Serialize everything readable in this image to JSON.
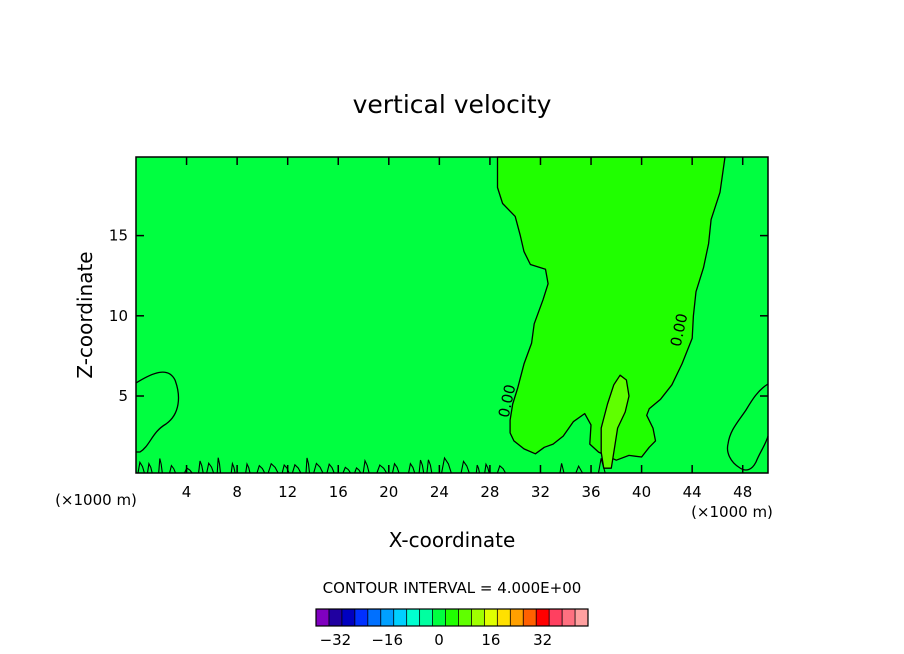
{
  "chart_data": {
    "type": "contour",
    "title": "vertical velocity",
    "xlabel": "X-coordinate",
    "ylabel": "Z-coordinate",
    "x_unit_left": "(×1000 m)",
    "x_unit_right": "(×1000 m)",
    "xlim": [
      0,
      50
    ],
    "ylim": [
      0.2,
      19.9
    ],
    "x_ticks": [
      4,
      8,
      12,
      16,
      20,
      24,
      28,
      32,
      36,
      40,
      44,
      48
    ],
    "y_ticks": [
      5,
      10,
      15
    ],
    "contour_interval_text": "CONTOUR INTERVAL = 4.000E+00",
    "contour_labels": [
      "0.00",
      "0.00"
    ],
    "background_color": "#00ff40",
    "regions": [
      {
        "name": "updraft-zone",
        "color": "#20ff00",
        "outline": [
          [
            28.6,
            19.9
          ],
          [
            28.6,
            18
          ],
          [
            29,
            17
          ],
          [
            30,
            16.2
          ],
          [
            30.4,
            15
          ],
          [
            30.7,
            14
          ],
          [
            31.2,
            13.2
          ],
          [
            32.4,
            12.9
          ],
          [
            32.6,
            12
          ],
          [
            32.2,
            11
          ],
          [
            31.5,
            9.5
          ],
          [
            31.3,
            8.3
          ],
          [
            30.7,
            7
          ],
          [
            30.2,
            5.5
          ],
          [
            29.8,
            4.5
          ],
          [
            29.6,
            3.5
          ],
          [
            29.6,
            2.7
          ],
          [
            29.9,
            2.2
          ],
          [
            30.7,
            1.7
          ],
          [
            31.6,
            1.4
          ],
          [
            32.3,
            1.8
          ],
          [
            33,
            2
          ],
          [
            33.8,
            2.5
          ],
          [
            34.6,
            3.4
          ],
          [
            35.5,
            3.9
          ],
          [
            36,
            3.2
          ],
          [
            35.9,
            2
          ],
          [
            36.6,
            1.5
          ],
          [
            38,
            1
          ],
          [
            39,
            1.3
          ],
          [
            40,
            1.2
          ],
          [
            40.6,
            1.8
          ],
          [
            41.1,
            2.2
          ],
          [
            40.9,
            3
          ],
          [
            40.4,
            3.8
          ],
          [
            40.6,
            4.2
          ],
          [
            41.5,
            4.8
          ],
          [
            42.4,
            5.7
          ],
          [
            43.2,
            7
          ],
          [
            44,
            8.6
          ],
          [
            44.1,
            10
          ],
          [
            44.3,
            11.5
          ],
          [
            44.9,
            13
          ],
          [
            45.3,
            14.5
          ],
          [
            45.5,
            16
          ],
          [
            46.2,
            17.7
          ],
          [
            46.6,
            19.9
          ]
        ]
      },
      {
        "name": "strong-updraft-cell",
        "color": "#60ff00",
        "outline": [
          [
            38.3,
            6.3
          ],
          [
            38.8,
            6
          ],
          [
            39,
            5
          ],
          [
            38.7,
            4
          ],
          [
            38.1,
            3
          ],
          [
            37.9,
            2
          ],
          [
            37.6,
            0.5
          ],
          [
            37.0,
            0.5
          ],
          [
            36.8,
            1.5
          ],
          [
            36.8,
            3
          ],
          [
            37.3,
            4.5
          ],
          [
            37.8,
            5.7
          ]
        ]
      }
    ],
    "colorbar": {
      "colors": [
        "#8000c0",
        "#2000a0",
        "#0000c0",
        "#0030ff",
        "#0070ff",
        "#00a0ff",
        "#00d0ff",
        "#00ffd0",
        "#00ffa0",
        "#00ff40",
        "#20ff00",
        "#60ff00",
        "#a0ff00",
        "#e0ff00",
        "#ffe000",
        "#ffa000",
        "#ff6000",
        "#ff0000",
        "#ff4060",
        "#ff7080",
        "#ffa0a0"
      ],
      "tick_labels": [
        "-32",
        "-16",
        "0",
        "16",
        "32"
      ],
      "tick_values": [
        -32,
        -16,
        0,
        16,
        32
      ]
    }
  }
}
